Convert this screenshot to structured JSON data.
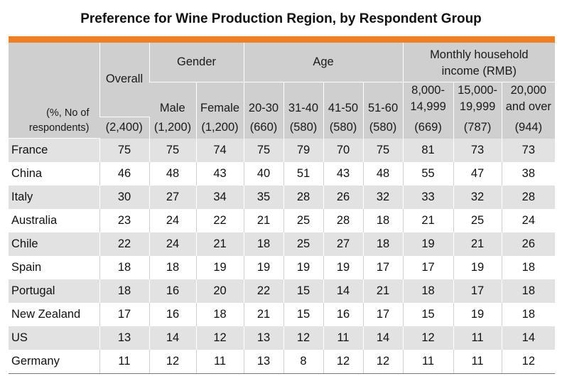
{
  "chart_data": {
    "type": "table",
    "title": "Preference for Wine Production Region, by Respondent Group",
    "corner_label": [
      "(%, No of",
      "respondents)"
    ],
    "groups": {
      "overall": "Overall",
      "gender": "Gender",
      "age": "Age",
      "income": [
        "Monthly household",
        "income (RMB)"
      ]
    },
    "columns": [
      {
        "label": [
          ""
        ],
        "n": "(2,400)"
      },
      {
        "label": [
          "Male"
        ],
        "n": "(1,200)"
      },
      {
        "label": [
          "Female"
        ],
        "n": "(1,200)"
      },
      {
        "label": [
          "20-30"
        ],
        "n": "(660)"
      },
      {
        "label": [
          "31-40"
        ],
        "n": "(580)"
      },
      {
        "label": [
          "41-50"
        ],
        "n": "(580)"
      },
      {
        "label": [
          "51-60"
        ],
        "n": "(580)"
      },
      {
        "label": [
          "8,000-",
          "14,999"
        ],
        "n": "(669)"
      },
      {
        "label": [
          "15,000-",
          "19,999"
        ],
        "n": "(787)"
      },
      {
        "label": [
          "20,000",
          "and over"
        ],
        "n": "(944)"
      }
    ],
    "rows": [
      {
        "region": "France",
        "values": [
          75,
          75,
          74,
          75,
          79,
          70,
          75,
          81,
          73,
          73
        ]
      },
      {
        "region": "China",
        "values": [
          46,
          48,
          43,
          40,
          51,
          43,
          48,
          55,
          47,
          38
        ]
      },
      {
        "region": "Italy",
        "values": [
          30,
          27,
          34,
          35,
          28,
          26,
          32,
          33,
          32,
          28
        ]
      },
      {
        "region": "Australia",
        "values": [
          23,
          24,
          22,
          21,
          25,
          28,
          18,
          21,
          25,
          24
        ]
      },
      {
        "region": "Chile",
        "values": [
          22,
          24,
          21,
          18,
          25,
          27,
          18,
          19,
          21,
          26
        ]
      },
      {
        "region": "Spain",
        "values": [
          18,
          18,
          19,
          19,
          19,
          19,
          17,
          17,
          19,
          18
        ]
      },
      {
        "region": "Portugal",
        "values": [
          18,
          16,
          20,
          22,
          15,
          14,
          21,
          18,
          17,
          18
        ]
      },
      {
        "region": "New Zealand",
        "values": [
          17,
          16,
          18,
          21,
          15,
          16,
          17,
          15,
          19,
          18
        ]
      },
      {
        "region": "US",
        "values": [
          13,
          14,
          12,
          13,
          12,
          11,
          14,
          12,
          11,
          14
        ]
      },
      {
        "region": "Germany",
        "values": [
          11,
          12,
          11,
          13,
          8,
          12,
          12,
          11,
          11,
          12
        ]
      }
    ],
    "colors": {
      "accent_bar": "#f07f23",
      "header_bg": "#cfcfcf",
      "row_shade": "#e2e2e2"
    }
  }
}
